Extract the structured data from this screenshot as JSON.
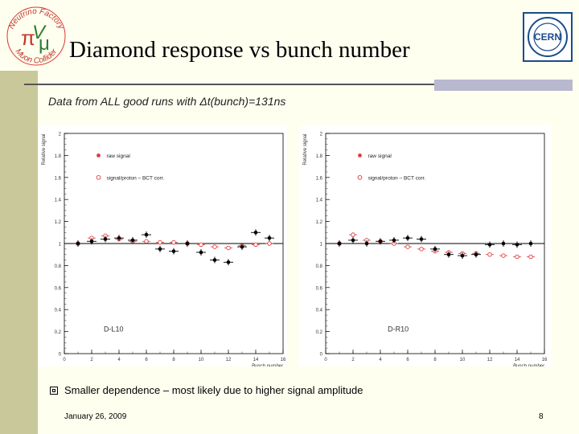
{
  "slide": {
    "title": "Diamond response vs bunch number",
    "subtitle": "Data from ALL good runs with Δt(bunch)=131ns",
    "bullet": "Smaller dependence – most likely due to higher signal amplitude",
    "date": "January 26, 2009",
    "page_number": "8",
    "logo_left_text": [
      "Neutrino Factory",
      "Muon Collider"
    ],
    "logo_right_text": "CERN",
    "colors": {
      "raw": "#000000",
      "corr": "#e03a3a",
      "background": "#fffff0"
    }
  },
  "chart_data": [
    {
      "type": "scatter",
      "label": "D-L10",
      "xlabel": "Bunch number",
      "ylabel": "Relative signal",
      "xlim": [
        0,
        16
      ],
      "ylim": [
        0,
        2
      ],
      "xticks": [
        0,
        2,
        4,
        6,
        8,
        10,
        12,
        14,
        16
      ],
      "yticks": [
        0,
        0.2,
        0.4,
        0.6,
        0.8,
        1,
        1.2,
        1.4,
        1.6,
        1.8,
        2
      ],
      "legend": [
        "raw signal",
        "signal/proton – BCT corr."
      ],
      "series": [
        {
          "name": "raw signal",
          "x": [
            1,
            2,
            3,
            4,
            5,
            6,
            7,
            8,
            9,
            10,
            11,
            12,
            13,
            14,
            15
          ],
          "y": [
            1.0,
            1.02,
            1.04,
            1.05,
            1.03,
            1.08,
            0.95,
            0.93,
            1.0,
            0.92,
            0.85,
            0.83,
            0.97,
            1.1,
            1.05
          ]
        },
        {
          "name": "signal/proton – BCT corr.",
          "x": [
            1,
            2,
            3,
            4,
            5,
            6,
            7,
            8,
            9,
            10,
            11,
            12,
            13,
            14,
            15
          ],
          "y": [
            1.0,
            1.05,
            1.07,
            1.04,
            1.02,
            1.02,
            1.01,
            1.01,
            1.0,
            0.99,
            0.97,
            0.96,
            0.98,
            0.99,
            1.0
          ]
        }
      ]
    },
    {
      "type": "scatter",
      "label": "D-R10",
      "xlabel": "Bunch number",
      "ylabel": "Relative signal",
      "xlim": [
        0,
        16
      ],
      "ylim": [
        0,
        2
      ],
      "xticks": [
        0,
        2,
        4,
        6,
        8,
        10,
        12,
        14,
        16
      ],
      "yticks": [
        0,
        0.2,
        0.4,
        0.6,
        0.8,
        1,
        1.2,
        1.4,
        1.6,
        1.8,
        2
      ],
      "legend": [
        "raw signal",
        "signal/proton – BCT corr."
      ],
      "series": [
        {
          "name": "raw signal",
          "x": [
            1,
            2,
            3,
            4,
            5,
            6,
            7,
            8,
            9,
            10,
            11,
            12,
            13,
            14,
            15
          ],
          "y": [
            1.0,
            1.03,
            1.0,
            1.02,
            1.03,
            1.05,
            1.04,
            0.95,
            0.9,
            0.89,
            0.9,
            0.99,
            1.0,
            0.99,
            1.0
          ]
        },
        {
          "name": "signal/proton – BCT corr.",
          "x": [
            1,
            2,
            3,
            4,
            5,
            6,
            7,
            8,
            9,
            10,
            11,
            12,
            13,
            14,
            15
          ],
          "y": [
            1.0,
            1.08,
            1.03,
            1.02,
            1.0,
            0.97,
            0.95,
            0.93,
            0.92,
            0.91,
            0.91,
            0.9,
            0.89,
            0.88,
            0.88
          ]
        }
      ]
    }
  ]
}
